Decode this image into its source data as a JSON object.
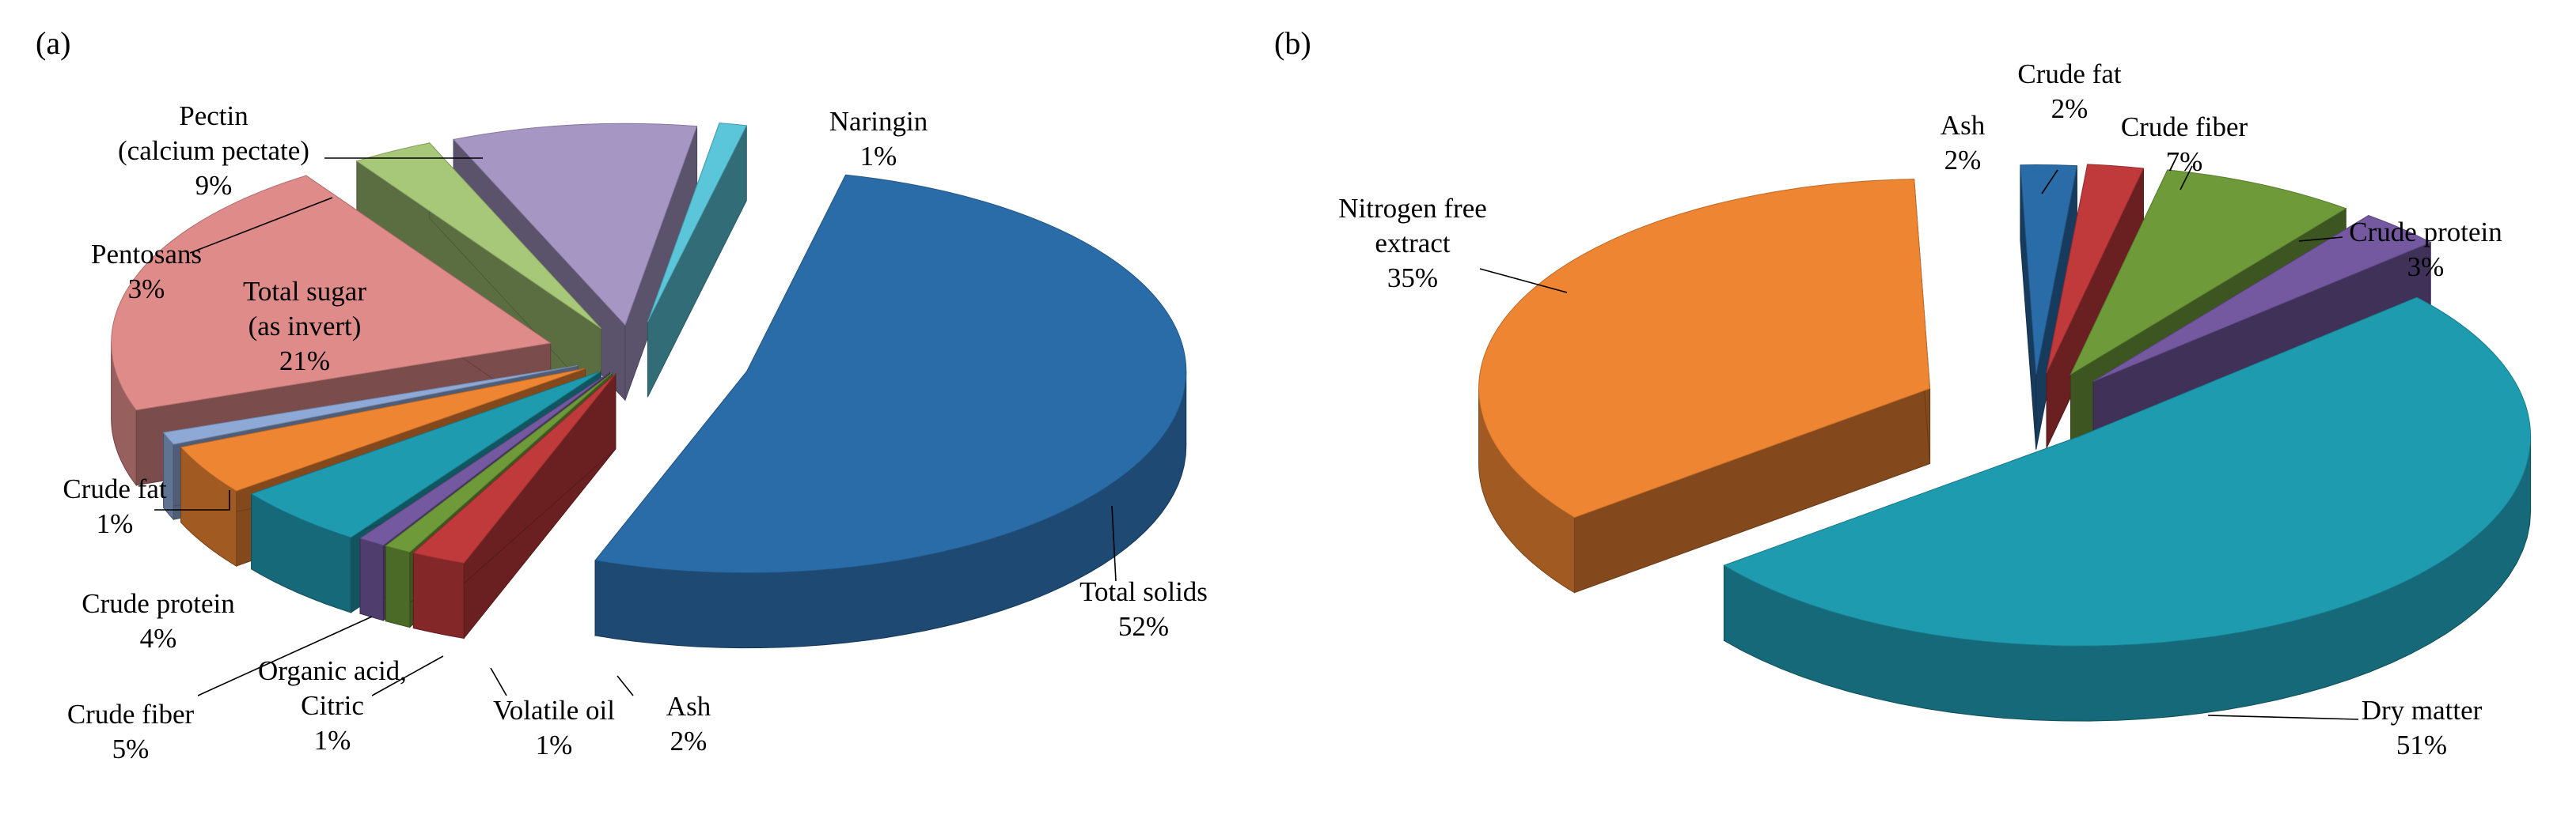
{
  "chart_data": [
    {
      "type": "pie",
      "panel_label": "(a)",
      "slices": [
        {
          "label": [
            "Total solids",
            "52%"
          ],
          "value": 52,
          "color": "#2a6ca8"
        },
        {
          "label": [
            "Ash",
            "2%"
          ],
          "value": 2,
          "color": "#c0393b"
        },
        {
          "label": [
            "Volatile  oil",
            "1%"
          ],
          "value": 1,
          "color": "#6f9a3a"
        },
        {
          "label": [
            "Organic acid,",
            "Citric",
            "1%"
          ],
          "value": 1,
          "color": "#7459a0"
        },
        {
          "label": [
            "Crude fiber",
            "5%"
          ],
          "value": 5,
          "color": "#1f9bb0"
        },
        {
          "label": [
            "Crude protein",
            "4%"
          ],
          "value": 4,
          "color": "#ee8533"
        },
        {
          "label": [
            "Crude fat",
            "1%"
          ],
          "value": 1,
          "color": "#8fa9d6"
        },
        {
          "label": [
            "Total sugar",
            "(as invert)",
            "21%"
          ],
          "value": 21,
          "color": "#de8b89"
        },
        {
          "label": [
            "Pentosans",
            "3%"
          ],
          "value": 3,
          "color": "#a6c878"
        },
        {
          "label": [
            "Pectin",
            "(calcium pectate)",
            "9%"
          ],
          "value": 9,
          "color": "#a596c4"
        },
        {
          "label": [
            "Naringin",
            "1%"
          ],
          "value": 1,
          "color": "#5bc5d9"
        }
      ]
    },
    {
      "type": "pie",
      "panel_label": "(b)",
      "slices": [
        {
          "label": [
            "Ash",
            "2%"
          ],
          "value": 2,
          "color": "#2a6ca8"
        },
        {
          "label": [
            "Crude fat",
            "2%"
          ],
          "value": 2,
          "color": "#c0393b"
        },
        {
          "label": [
            "Crude fiber",
            "7%"
          ],
          "value": 7,
          "color": "#6f9a3a"
        },
        {
          "label": [
            "Crude protein",
            "3%"
          ],
          "value": 3,
          "color": "#7459a0"
        },
        {
          "label": [
            "Dry matter",
            "51%"
          ],
          "value": 51,
          "color": "#1f9bb0"
        },
        {
          "label": [
            "Nitrogen free",
            "extract",
            "35%"
          ],
          "value": 35,
          "color": "#ee8533"
        }
      ]
    }
  ]
}
